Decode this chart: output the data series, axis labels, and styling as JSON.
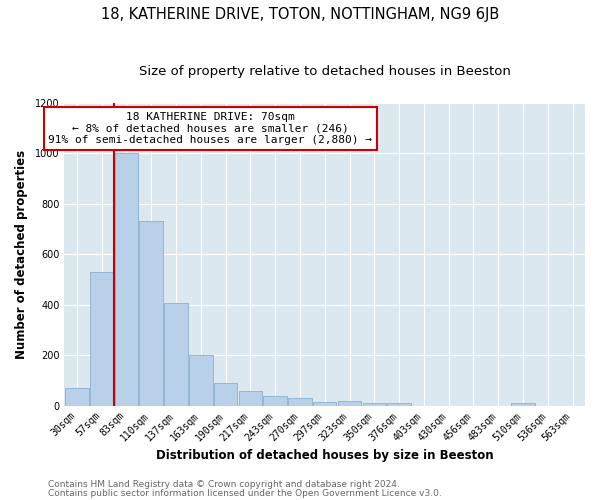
{
  "title": "18, KATHERINE DRIVE, TOTON, NOTTINGHAM, NG9 6JB",
  "subtitle": "Size of property relative to detached houses in Beeston",
  "xlabel": "Distribution of detached houses by size in Beeston",
  "ylabel": "Number of detached properties",
  "bar_labels": [
    "30sqm",
    "57sqm",
    "83sqm",
    "110sqm",
    "137sqm",
    "163sqm",
    "190sqm",
    "217sqm",
    "243sqm",
    "270sqm",
    "297sqm",
    "323sqm",
    "350sqm",
    "376sqm",
    "403sqm",
    "430sqm",
    "456sqm",
    "483sqm",
    "510sqm",
    "536sqm",
    "563sqm"
  ],
  "bar_values": [
    70,
    530,
    1000,
    730,
    405,
    200,
    90,
    60,
    40,
    30,
    15,
    20,
    10,
    10,
    0,
    0,
    0,
    0,
    10,
    0,
    0
  ],
  "bar_color": "#b8d0e8",
  "bar_edge_color": "#8ab0d0",
  "vline_color": "#cc0000",
  "annotation_title": "18 KATHERINE DRIVE: 70sqm",
  "annotation_line1": "← 8% of detached houses are smaller (246)",
  "annotation_line2": "91% of semi-detached houses are larger (2,880) →",
  "annotation_box_color": "#ffffff",
  "annotation_box_edge": "#cc0000",
  "ylim": [
    0,
    1200
  ],
  "yticks": [
    0,
    200,
    400,
    600,
    800,
    1000,
    1200
  ],
  "footer1": "Contains HM Land Registry data © Crown copyright and database right 2024.",
  "footer2": "Contains public sector information licensed under the Open Government Licence v3.0.",
  "bg_color": "#ffffff",
  "plot_bg_color": "#dce8f0",
  "title_fontsize": 10.5,
  "subtitle_fontsize": 9.5,
  "axis_label_fontsize": 8.5,
  "tick_fontsize": 7,
  "annotation_fontsize": 8,
  "footer_fontsize": 6.5
}
